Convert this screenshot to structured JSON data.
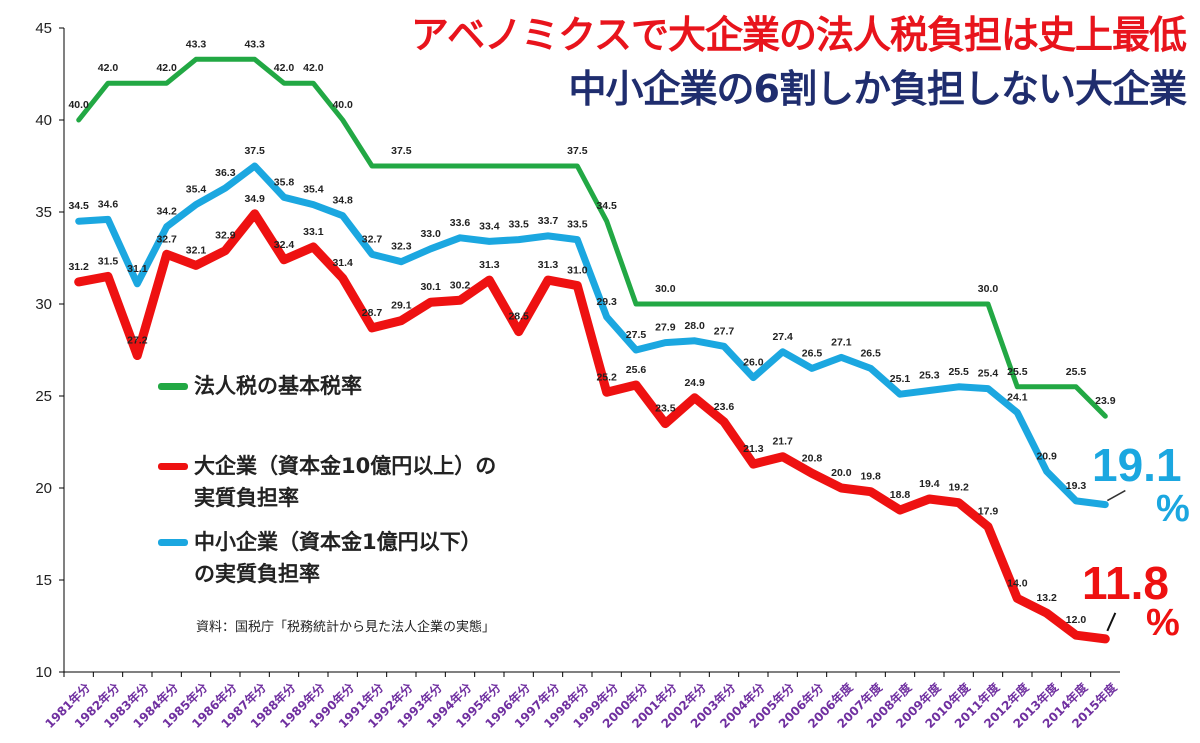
{
  "title": "アベノミクスで大企業の法人税負担は史上最低",
  "subtitle": "中小企業の6割しか負担しない大企業",
  "source": "資料：国税庁「税務統計から見た法人企業の実態」",
  "callouts": {
    "small_value": "19.1",
    "small_unit": "%",
    "large_value": "11.8",
    "large_unit": "%"
  },
  "colors": {
    "green": "#22a844",
    "red": "#ee1111",
    "blue": "#1ba7e0",
    "axis_label": "#7030a0",
    "title_red": "#e8141c",
    "title_navy": "#1f2d6e"
  },
  "legend": [
    {
      "line1": "法人税の基本税率",
      "line2": "",
      "color": "#22a844"
    },
    {
      "line1": "大企業（資本金10億円以上）の",
      "line2": "実質負担率",
      "color": "#ee1111"
    },
    {
      "line1": "中小企業（資本金1億円以下）",
      "line2": "の実質負担率",
      "color": "#1ba7e0"
    }
  ],
  "chart_data": {
    "type": "line",
    "categories": [
      "1981年分",
      "1982年分",
      "1983年分",
      "1984年分",
      "1985年分",
      "1986年分",
      "1987年分",
      "1988年分",
      "1989年分",
      "1990年分",
      "1991年分",
      "1992年分",
      "1993年分",
      "1994年分",
      "1995年分",
      "1996年分",
      "1997年分",
      "1998年分",
      "1999年分",
      "2000年分",
      "2001年分",
      "2002年分",
      "2003年分",
      "2004年分",
      "2005年分",
      "2006年分",
      "2006年度",
      "2007年度",
      "2008年度",
      "2009年度",
      "2010年度",
      "2011年度",
      "2012年度",
      "2013年度",
      "2014年度",
      "2015年度"
    ],
    "ylim": [
      10,
      45
    ],
    "yticks": [
      10,
      15,
      20,
      25,
      30,
      35,
      40,
      45
    ],
    "grid": false,
    "series": [
      {
        "name": "法人税の基本税率",
        "color": "#22a844",
        "values": [
          40.0,
          42.0,
          42.0,
          42.0,
          43.3,
          43.3,
          43.3,
          42.0,
          42.0,
          40.0,
          37.5,
          37.5,
          37.5,
          37.5,
          37.5,
          37.5,
          37.5,
          37.5,
          34.5,
          30.0,
          30.0,
          30.0,
          30.0,
          30.0,
          30.0,
          30.0,
          30.0,
          30.0,
          30.0,
          30.0,
          30.0,
          30.0,
          25.5,
          25.5,
          25.5,
          23.9
        ],
        "labels": [
          "40.0",
          "42.0",
          "",
          "42.0",
          "43.3",
          "",
          "43.3",
          "42.0",
          "42.0",
          "40.0",
          "",
          "37.5",
          "",
          "",
          "",
          "",
          "",
          "37.5",
          "34.5",
          "",
          "30.0",
          "",
          "",
          "",
          "",
          "",
          "",
          "",
          "",
          "",
          "",
          "30.0",
          "25.5",
          "",
          "25.5",
          "23.9"
        ]
      },
      {
        "name": "中小企業（資本金1億円以下）の実質負担率",
        "color": "#1ba7e0",
        "values": [
          34.5,
          34.6,
          31.1,
          34.2,
          35.4,
          36.3,
          37.5,
          35.8,
          35.4,
          34.8,
          32.7,
          32.3,
          33.0,
          33.6,
          33.4,
          33.5,
          33.7,
          33.5,
          29.3,
          27.5,
          27.9,
          28.0,
          27.7,
          26.0,
          27.4,
          26.5,
          27.1,
          26.5,
          25.1,
          25.3,
          25.5,
          25.4,
          24.1,
          20.9,
          19.3,
          19.1
        ],
        "labels": [
          "34.5",
          "34.6",
          "31.1",
          "34.2",
          "35.4",
          "36.3",
          "37.5",
          "35.8",
          "35.4",
          "34.8",
          "32.7",
          "32.3",
          "33.0",
          "33.6",
          "33.4",
          "33.5",
          "33.7",
          "33.5",
          "29.3",
          "27.5",
          "27.9",
          "28.0",
          "27.7",
          "26.0",
          "27.4",
          "26.5",
          "27.1",
          "26.5",
          "25.1",
          "25.3",
          "25.5",
          "25.4",
          "24.1",
          "20.9",
          "19.3",
          ""
        ]
      },
      {
        "name": "大企業（資本金10億円以上）の実質負担率",
        "color": "#ee1111",
        "values": [
          31.2,
          31.5,
          27.2,
          32.7,
          32.1,
          32.9,
          34.9,
          32.4,
          33.1,
          31.4,
          28.7,
          29.1,
          30.1,
          30.2,
          31.3,
          28.5,
          31.3,
          31.0,
          25.2,
          25.6,
          23.5,
          24.9,
          23.6,
          21.3,
          21.7,
          20.8,
          20.0,
          19.8,
          18.8,
          19.4,
          19.2,
          17.9,
          14.0,
          13.2,
          12.0,
          11.8
        ],
        "labels": [
          "31.2",
          "31.5",
          "27.2",
          "32.7",
          "32.1",
          "32.9",
          "34.9",
          "32.4",
          "33.1",
          "31.4",
          "28.7",
          "29.1",
          "30.1",
          "30.2",
          "31.3",
          "28.5",
          "31.3",
          "31.0",
          "25.2",
          "25.6",
          "23.5",
          "24.9",
          "23.6",
          "21.3",
          "21.7",
          "20.8",
          "20.0",
          "19.8",
          "18.8",
          "19.4",
          "19.2",
          "17.9",
          "14.0",
          "13.2",
          "12.0",
          ""
        ]
      }
    ]
  }
}
